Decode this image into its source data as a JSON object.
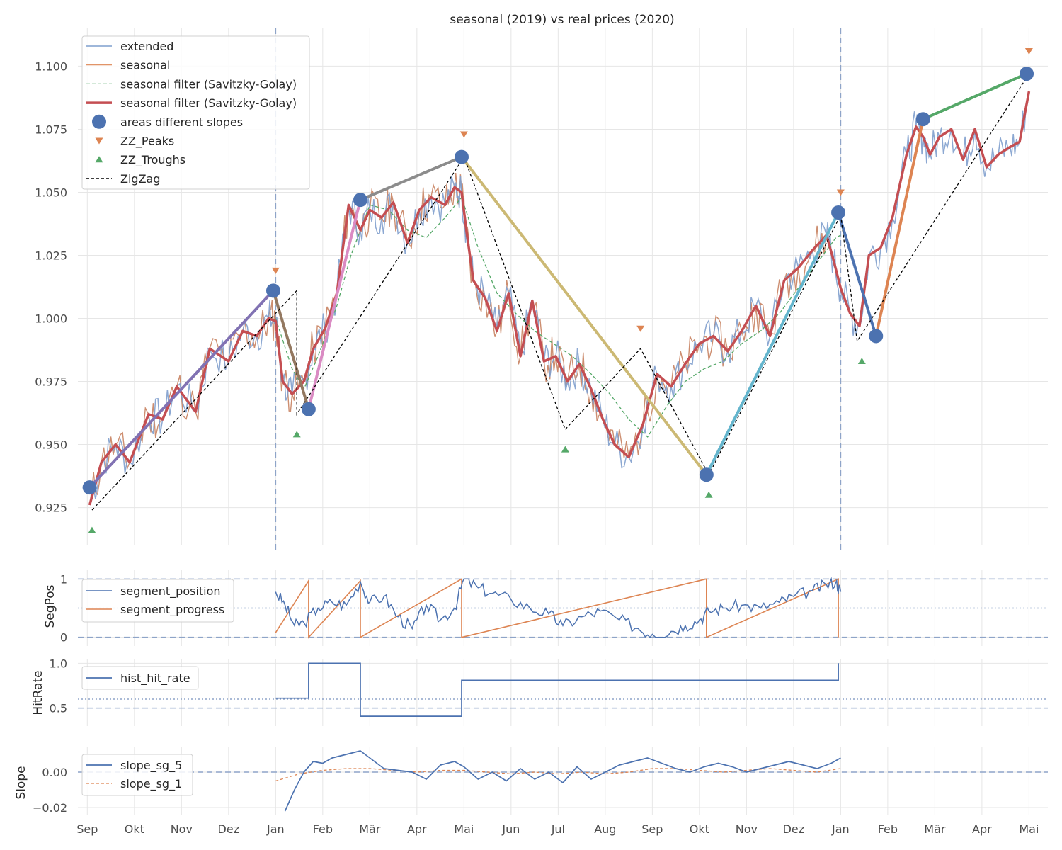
{
  "chart_data": {
    "type": "line",
    "title": "seasonal (2019) vs real prices (2020)",
    "x_tick_labels": [
      "Sep",
      "Okt",
      "Nov",
      "Dez",
      "Jan",
      "Feb",
      "Mär",
      "Apr",
      "Mai",
      "Jun",
      "Jul",
      "Aug",
      "Sep",
      "Okt",
      "Nov",
      "Dez",
      "Jan",
      "Feb",
      "Mär",
      "Apr",
      "Mai"
    ],
    "x_range_months": [
      -0.2,
      20.4
    ],
    "year_boundaries_months": [
      4,
      16
    ],
    "panels": {
      "main": {
        "ylim": [
          0.91,
          1.115
        ],
        "yticks": [
          0.925,
          0.95,
          0.975,
          1.0,
          1.025,
          1.05,
          1.075,
          1.1
        ],
        "ytick_labels": [
          "0.925",
          "0.950",
          "0.975",
          "1.000",
          "1.025",
          "1.050",
          "1.075",
          "1.100"
        ],
        "legend": {
          "placement": "top-left",
          "entries": [
            "extended",
            "seasonal",
            "seasonal filter (Savitzky-Golay)",
            "seasonal filter (Savitzky-Golay)",
            "areas different slopes",
            "ZZ_Peaks",
            "ZZ_Troughs",
            "ZigZag"
          ]
        },
        "zigzag": {
          "name": "ZigZag",
          "x": [
            0.1,
            4.45,
            4.45,
            8.0,
            10.15,
            11.75,
            13.2,
            16.0,
            16.35,
            20.0
          ],
          "y": [
            0.924,
            1.011,
            0.962,
            1.064,
            0.956,
            0.988,
            0.938,
            1.041,
            0.991,
            1.097
          ]
        },
        "zz_peaks": {
          "name": "ZZ_Peaks",
          "x": [
            4.0,
            8.0,
            11.75,
            16.0,
            20.0
          ],
          "y": [
            1.019,
            1.073,
            0.996,
            1.05,
            1.106
          ]
        },
        "zz_troughs": {
          "name": "ZZ_Troughs",
          "x": [
            0.1,
            4.45,
            10.15,
            13.2,
            16.45
          ],
          "y": [
            0.916,
            0.954,
            0.948,
            0.93,
            0.983
          ]
        },
        "areas_points": {
          "name": "areas different slopes",
          "x": [
            0.05,
            3.95,
            4.7,
            5.8,
            7.95,
            13.15,
            15.95,
            16.75,
            17.75,
            19.95
          ],
          "y": [
            0.933,
            1.011,
            0.964,
            1.047,
            1.064,
            0.938,
            1.042,
            0.993,
            1.079,
            1.097
          ]
        },
        "segments": [
          {
            "x": [
              0.05,
              3.95
            ],
            "y": [
              0.933,
              1.011
            ],
            "color": "#8172b3"
          },
          {
            "x": [
              3.95,
              4.7
            ],
            "y": [
              1.011,
              0.964
            ],
            "color": "#937860"
          },
          {
            "x": [
              4.7,
              5.8
            ],
            "y": [
              0.964,
              1.047
            ],
            "color": "#da8bc3"
          },
          {
            "x": [
              5.8,
              7.95
            ],
            "y": [
              1.047,
              1.064
            ],
            "color": "#8c8c8c"
          },
          {
            "x": [
              7.95,
              13.15
            ],
            "y": [
              1.064,
              0.938
            ],
            "color": "#ccb974"
          },
          {
            "x": [
              13.15,
              15.95
            ],
            "y": [
              0.938,
              1.042
            ],
            "color": "#64b5cd"
          },
          {
            "x": [
              15.95,
              16.75
            ],
            "y": [
              1.042,
              0.993
            ],
            "color": "#4c72b0"
          },
          {
            "x": [
              16.75,
              17.75
            ],
            "y": [
              0.993,
              1.079
            ],
            "color": "#dd8452"
          },
          {
            "x": [
              17.75,
              19.95
            ],
            "y": [
              1.079,
              1.097
            ],
            "color": "#55a868"
          }
        ],
        "savgol_thick": {
          "name": "seasonal filter (Savitzky-Golay)",
          "x": [
            0.05,
            0.3,
            0.6,
            0.9,
            1.3,
            1.6,
            1.9,
            2.3,
            2.6,
            3.0,
            3.3,
            3.6,
            3.85,
            4.0,
            4.15,
            4.35,
            4.6,
            4.8,
            5.05,
            5.3,
            5.55,
            5.8,
            6.0,
            6.25,
            6.5,
            6.8,
            7.05,
            7.3,
            7.6,
            7.8,
            7.95,
            8.05,
            8.2,
            8.45,
            8.7,
            8.95,
            9.2,
            9.45,
            9.7,
            9.95,
            10.2,
            10.45,
            10.7,
            10.95,
            11.2,
            11.5,
            11.8,
            12.1,
            12.4,
            12.7,
            13.0,
            13.3,
            13.6,
            13.9,
            14.2,
            14.5,
            14.8,
            15.1,
            15.4,
            15.7,
            15.85,
            16.0,
            16.2,
            16.4,
            16.6,
            16.85,
            17.1,
            17.4,
            17.6,
            17.75,
            17.9,
            18.1,
            18.35,
            18.6,
            18.85,
            19.1,
            19.35,
            19.6,
            19.8,
            20.0
          ],
          "y": [
            0.926,
            0.943,
            0.95,
            0.943,
            0.962,
            0.96,
            0.973,
            0.963,
            0.988,
            0.983,
            0.995,
            0.993,
            1.0,
            0.999,
            0.975,
            0.97,
            0.975,
            0.988,
            0.996,
            1.01,
            1.045,
            1.035,
            1.043,
            1.04,
            1.046,
            1.03,
            1.043,
            1.048,
            1.045,
            1.052,
            1.05,
            1.035,
            1.015,
            1.008,
            0.995,
            1.01,
            0.985,
            1.007,
            0.983,
            0.985,
            0.975,
            0.982,
            0.972,
            0.96,
            0.95,
            0.945,
            0.958,
            0.978,
            0.973,
            0.982,
            0.99,
            0.993,
            0.987,
            0.995,
            1.005,
            0.993,
            1.015,
            1.02,
            1.027,
            1.033,
            1.023,
            1.012,
            1.002,
            0.997,
            1.025,
            1.028,
            1.04,
            1.065,
            1.076,
            1.072,
            1.065,
            1.072,
            1.075,
            1.063,
            1.075,
            1.06,
            1.065,
            1.068,
            1.07,
            1.09
          ]
        },
        "savgol_thin": {
          "name": "seasonal filter (Savitzky-Golay)",
          "x": [
            4.0,
            4.35,
            4.6,
            4.9,
            5.3,
            5.6,
            6.0,
            6.4,
            6.8,
            7.2,
            7.6,
            7.95,
            8.3,
            8.7,
            9.1,
            9.5,
            9.9,
            10.3,
            10.7,
            11.1,
            11.5,
            11.9,
            12.3,
            12.7,
            13.1,
            13.5,
            13.9,
            14.3,
            14.7,
            15.1,
            15.5,
            15.9,
            16.0
          ],
          "y": [
            1.0,
            0.98,
            0.972,
            0.985,
            1.005,
            1.025,
            1.045,
            1.043,
            1.035,
            1.032,
            1.04,
            1.048,
            1.028,
            1.01,
            1.002,
            0.995,
            0.99,
            0.985,
            0.978,
            0.97,
            0.96,
            0.953,
            0.965,
            0.975,
            0.98,
            0.983,
            0.99,
            0.995,
            1.002,
            1.012,
            1.022,
            1.032,
            1.033
          ]
        }
      },
      "segpos": {
        "ylabel": "SegPos",
        "ylim": [
          -0.15,
          1.15
        ],
        "yticks": [
          0,
          1
        ],
        "ytick_labels": [
          "0",
          "1"
        ],
        "dotted_hline": 0.5,
        "legend": {
          "placement": "top-left",
          "entries": [
            "segment_position",
            "segment_progress"
          ]
        },
        "segment_progress": {
          "name": "segment_progress",
          "x": [
            4.0,
            4.7,
            4.7,
            5.8,
            5.8,
            7.95,
            7.95,
            13.15,
            13.15,
            15.95,
            15.95
          ],
          "y": [
            0.08,
            0.97,
            0,
            0.97,
            0,
            1,
            0,
            1,
            0,
            1,
            0
          ]
        },
        "segment_position": {
          "name": "segment_position",
          "x": [
            4.0,
            4.2,
            4.4,
            4.6,
            4.9,
            5.2,
            5.5,
            5.8,
            6.0,
            6.3,
            6.6,
            6.9,
            7.2,
            7.5,
            7.8,
            8.0,
            8.3,
            8.6,
            9.0,
            9.4,
            9.8,
            10.1,
            10.5,
            10.9,
            11.3,
            11.7,
            12.0,
            12.4,
            12.7,
            13.0,
            13.2,
            13.5,
            13.9,
            14.3,
            14.7,
            15.0,
            15.4,
            15.7,
            15.9,
            16.0
          ],
          "y": [
            0.78,
            0.55,
            0.2,
            0.25,
            0.5,
            0.6,
            0.55,
            0.95,
            0.6,
            0.7,
            0.35,
            0.15,
            0.55,
            0.3,
            0.5,
            1.0,
            0.85,
            0.75,
            0.65,
            0.5,
            0.4,
            0.2,
            0.35,
            0.45,
            0.3,
            0.15,
            0.05,
            0.1,
            0.2,
            0.3,
            0.45,
            0.5,
            0.55,
            0.5,
            0.6,
            0.7,
            0.8,
            0.9,
            0.95,
            0.78
          ]
        }
      },
      "hitrate": {
        "ylabel": "HitRate",
        "ylim": [
          0.3,
          1.05
        ],
        "yticks": [
          0.5,
          1.0
        ],
        "ytick_labels": [
          "0.5",
          "1.0"
        ],
        "dashed_hline": 0.5,
        "dotted_hline": 0.6,
        "legend": {
          "placement": "top-left",
          "entries": [
            "hist_hit_rate"
          ]
        },
        "hist_hit_rate": {
          "name": "hist_hit_rate",
          "x": [
            4.0,
            4.7,
            4.7,
            5.8,
            5.8,
            7.95,
            7.95,
            15.95,
            15.95
          ],
          "y": [
            0.61,
            0.61,
            1.0,
            1.0,
            0.41,
            0.41,
            0.81,
            0.81,
            1.0
          ]
        }
      },
      "slope": {
        "ylabel": "Slope",
        "ylim": [
          -0.024,
          0.014
        ],
        "yticks": [
          -0.02,
          0.0
        ],
        "ytick_labels": [
          "−0.02",
          "0.00"
        ],
        "dashed_hline": 0.0,
        "legend": {
          "placement": "top-left",
          "entries": [
            "slope_sg_5",
            "slope_sg_1"
          ]
        },
        "slope_sg_5": {
          "name": "slope_sg_5",
          "x": [
            4.2,
            4.4,
            4.6,
            4.8,
            5.0,
            5.2,
            5.5,
            5.8,
            6.0,
            6.3,
            6.6,
            6.9,
            7.2,
            7.5,
            7.8,
            8.0,
            8.3,
            8.6,
            8.9,
            9.2,
            9.5,
            9.8,
            10.1,
            10.4,
            10.7,
            11.0,
            11.3,
            11.6,
            11.9,
            12.2,
            12.5,
            12.8,
            13.1,
            13.4,
            13.7,
            14.0,
            14.3,
            14.6,
            14.9,
            15.2,
            15.5,
            15.8,
            16.0
          ],
          "y": [
            -0.022,
            -0.01,
            0.0,
            0.006,
            0.005,
            0.008,
            0.01,
            0.012,
            0.008,
            0.002,
            0.001,
            0.0,
            -0.004,
            0.004,
            0.006,
            0.003,
            -0.004,
            0.0,
            -0.005,
            0.002,
            -0.004,
            0.0,
            -0.006,
            0.003,
            -0.004,
            0.0,
            0.004,
            0.006,
            0.008,
            0.005,
            0.002,
            0.0,
            0.003,
            0.005,
            0.003,
            0.0,
            0.002,
            0.004,
            0.006,
            0.004,
            0.002,
            0.005,
            0.008
          ]
        },
        "slope_sg_1": {
          "name": "slope_sg_1",
          "x": [
            4.0,
            4.5,
            5.0,
            5.5,
            6.0,
            6.5,
            7.0,
            7.5,
            8.0,
            8.5,
            9.0,
            9.5,
            10.0,
            10.5,
            11.0,
            11.5,
            12.0,
            12.5,
            13.0,
            13.5,
            14.0,
            14.5,
            15.0,
            15.5,
            16.0
          ],
          "y": [
            -0.005,
            -0.001,
            0.001,
            0.002,
            0.002,
            0.001,
            0.0,
            0.001,
            0.001,
            0.0,
            -0.001,
            0.0,
            -0.001,
            0.0,
            -0.001,
            0.0,
            0.002,
            0.002,
            0.001,
            0.0,
            0.001,
            0.002,
            0.001,
            0.0,
            0.002
          ]
        }
      }
    }
  },
  "colors": {
    "blue": "#4c72b0",
    "orange": "#dd8452",
    "green": "#55a868",
    "red": "#c44e52",
    "light_blue": "#7f9fcd",
    "brown_orange": "#c47a57",
    "grid": "#e6e6e6",
    "tick_text": "#4d4d4d",
    "black": "#000000"
  }
}
